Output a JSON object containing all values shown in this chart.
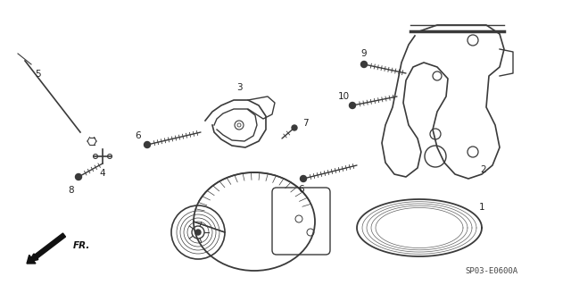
{
  "background_color": "#ffffff",
  "line_color": "#3a3a3a",
  "fig_width": 6.4,
  "fig_height": 3.19,
  "dpi": 100,
  "diagram_code": "SP03-E0600A",
  "label_font": 7.5,
  "label_color": "#222222"
}
